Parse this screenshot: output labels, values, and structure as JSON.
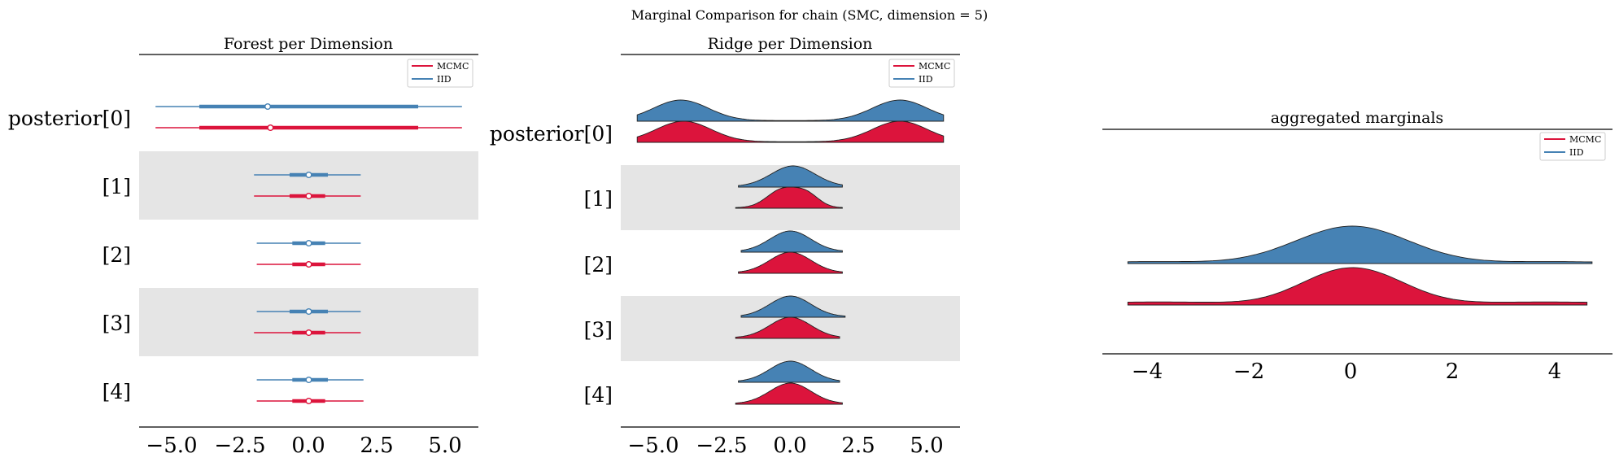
{
  "suptitle": "Marginal Comparison for chain (SMC, dimension = 5)",
  "colors": {
    "mcmc": "#dc143c",
    "iid": "#4682b4",
    "band": "#e5e5e5"
  },
  "chart_data": [
    {
      "type": "forest",
      "title": "Forest per Dimension",
      "xlim": [
        -6.2,
        6.2
      ],
      "xticks": [
        "−5.0",
        "−2.5",
        "0.0",
        "2.5",
        "5.0"
      ],
      "xtick_values": [
        -5,
        -2.5,
        0,
        2.5,
        5
      ],
      "labels": [
        "posterior[0]",
        "[1]",
        "[2]",
        "[3]",
        "[4]"
      ],
      "legend": {
        "position": "upper right",
        "entries": [
          "MCMC",
          "IID"
        ]
      },
      "series": [
        {
          "name": "IID",
          "rows": [
            {
              "lo": -5.6,
              "q1": -4.0,
              "med": -1.5,
              "q3": 4.0,
              "hi": 5.6
            },
            {
              "lo": -2.0,
              "q1": -0.7,
              "med": 0.0,
              "q3": 0.7,
              "hi": 1.9
            },
            {
              "lo": -1.9,
              "q1": -0.6,
              "med": 0.0,
              "q3": 0.6,
              "hi": 1.9
            },
            {
              "lo": -1.9,
              "q1": -0.7,
              "med": 0.0,
              "q3": 0.7,
              "hi": 1.9
            },
            {
              "lo": -1.9,
              "q1": -0.6,
              "med": 0.0,
              "q3": 0.7,
              "hi": 2.0
            }
          ]
        },
        {
          "name": "MCMC",
          "rows": [
            {
              "lo": -5.6,
              "q1": -4.0,
              "med": -1.4,
              "q3": 4.0,
              "hi": 5.6
            },
            {
              "lo": -2.0,
              "q1": -0.7,
              "med": 0.0,
              "q3": 0.6,
              "hi": 1.9
            },
            {
              "lo": -1.9,
              "q1": -0.6,
              "med": 0.0,
              "q3": 0.6,
              "hi": 1.9
            },
            {
              "lo": -2.0,
              "q1": -0.6,
              "med": 0.0,
              "q3": 0.6,
              "hi": 1.9
            },
            {
              "lo": -1.9,
              "q1": -0.6,
              "med": 0.0,
              "q3": 0.6,
              "hi": 2.0
            }
          ]
        }
      ]
    },
    {
      "type": "ridge",
      "title": "Ridge per Dimension",
      "xlim": [
        -6.2,
        6.2
      ],
      "xticks": [
        "−5.0",
        "−2.5",
        "0.0",
        "2.5",
        "5.0"
      ],
      "xtick_values": [
        -5,
        -2.5,
        0,
        2.5,
        5
      ],
      "labels": [
        "posterior[0]",
        "[1]",
        "[2]",
        "[3]",
        "[4]"
      ],
      "legend": {
        "position": "upper right",
        "entries": [
          "MCMC",
          "IID"
        ]
      },
      "series": [
        {
          "name": "IID",
          "rows": [
            {
              "range": [
                -5.6,
                5.6
              ],
              "components": [
                [
                  -4.0,
                  1.0,
                  1.0
                ],
                [
                  4.0,
                  1.0,
                  1.0
                ]
              ]
            },
            {
              "range": [
                -1.9,
                1.9
              ],
              "components": [
                [
                  0.1,
                  0.8,
                  1.0
                ]
              ]
            },
            {
              "range": [
                -1.8,
                1.9
              ],
              "components": [
                [
                  0.0,
                  0.75,
                  1.0
                ]
              ]
            },
            {
              "range": [
                -1.8,
                2.0
              ],
              "components": [
                [
                  0.0,
                  0.75,
                  1.0
                ]
              ]
            },
            {
              "range": [
                -1.9,
                1.8
              ],
              "components": [
                [
                  0.0,
                  0.75,
                  1.0
                ]
              ]
            }
          ]
        },
        {
          "name": "MCMC",
          "rows": [
            {
              "range": [
                -5.6,
                5.6
              ],
              "components": [
                [
                  -3.9,
                  1.0,
                  1.0
                ],
                [
                  4.0,
                  1.0,
                  1.0
                ]
              ]
            },
            {
              "range": [
                -2.0,
                1.9
              ],
              "components": [
                [
                  -0.3,
                  0.55,
                  1.0
                ],
                [
                  0.6,
                  0.45,
                  0.7
                ]
              ]
            },
            {
              "range": [
                -1.9,
                1.9
              ],
              "components": [
                [
                  0.0,
                  0.75,
                  1.0
                ]
              ]
            },
            {
              "range": [
                -2.0,
                1.8
              ],
              "components": [
                [
                  0.0,
                  0.75,
                  1.0
                ]
              ]
            },
            {
              "range": [
                -2.0,
                1.9
              ],
              "components": [
                [
                  0.0,
                  0.75,
                  1.0
                ]
              ]
            }
          ]
        }
      ]
    },
    {
      "type": "ridge",
      "title": "aggregated marginals",
      "xlim": [
        -4.9,
        5.1
      ],
      "xticks": [
        "−4",
        "−2",
        "0",
        "2",
        "4"
      ],
      "xtick_values": [
        -4,
        -2,
        0,
        2,
        4
      ],
      "legend": {
        "position": "upper right",
        "entries": [
          "MCMC",
          "IID"
        ]
      },
      "series": [
        {
          "name": "IID",
          "rows": [
            {
              "range": [
                -4.4,
                4.7
              ],
              "baseline": 0.012,
              "components": [
                [
                  0.0,
                  1.1,
                  1.0
                ],
                [
                  -4.0,
                  1.0,
                  0.04
                ],
                [
                  4.0,
                  1.0,
                  0.04
                ]
              ]
            }
          ]
        },
        {
          "name": "MCMC",
          "rows": [
            {
              "range": [
                -4.4,
                4.6
              ],
              "baseline": 0.05,
              "components": [
                [
                  -0.4,
                  0.8,
                  0.8
                ],
                [
                  0.5,
                  0.8,
                  0.7
                ],
                [
                  -3.8,
                  1.2,
                  0.06
                ],
                [
                  3.8,
                  1.2,
                  0.06
                ]
              ]
            }
          ]
        }
      ]
    }
  ]
}
